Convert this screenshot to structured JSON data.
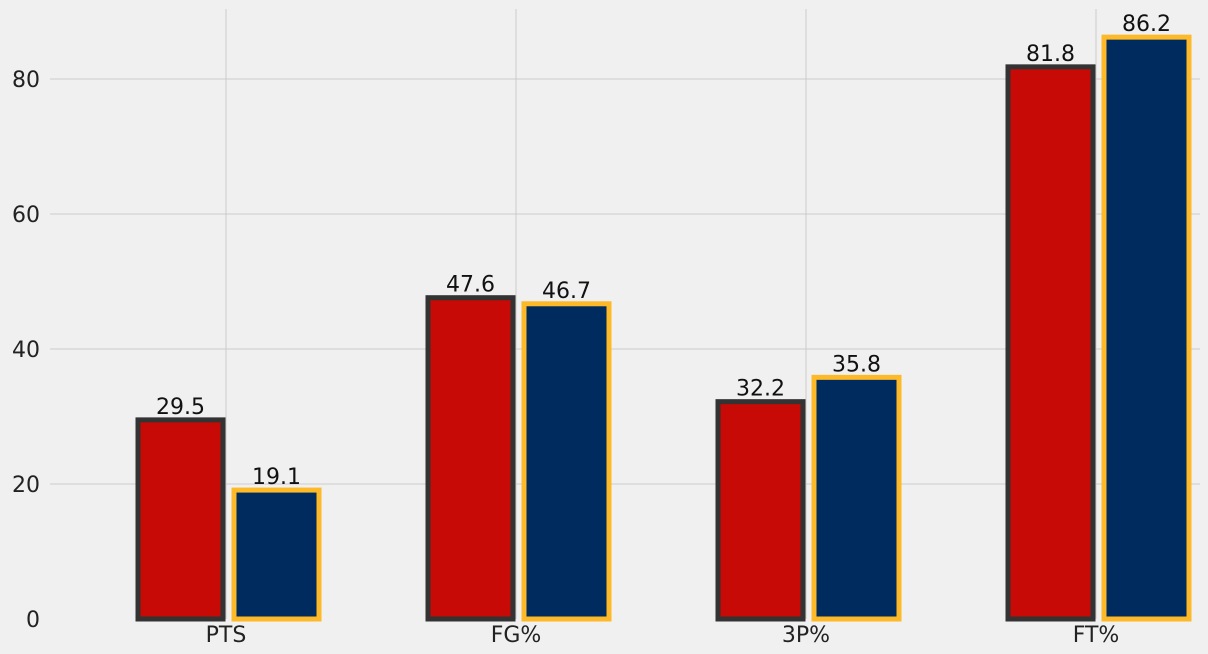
{
  "chart_data": {
    "type": "bar",
    "categories": [
      "PTS",
      "FG%",
      "3P%",
      "FT%"
    ],
    "series": [
      {
        "values": [
          29.5,
          47.6,
          32.2,
          81.8
        ],
        "fill": "#c80a06",
        "edge": "#333333"
      },
      {
        "values": [
          19.1,
          46.7,
          35.8,
          86.2
        ],
        "fill": "#002b5e",
        "edge": "#fdb927"
      }
    ],
    "ylim": [
      0,
      90
    ],
    "yticks": [
      0,
      20,
      40,
      60,
      80
    ],
    "ytick_labels": [
      "0",
      "20",
      "40",
      "60",
      "80"
    ],
    "data_labels": [
      [
        "29.5",
        "47.6",
        "32.2",
        "81.8"
      ],
      [
        "19.1",
        "46.7",
        "35.8",
        "86.2"
      ]
    ],
    "grid": true,
    "background": "#f0f0f0"
  }
}
